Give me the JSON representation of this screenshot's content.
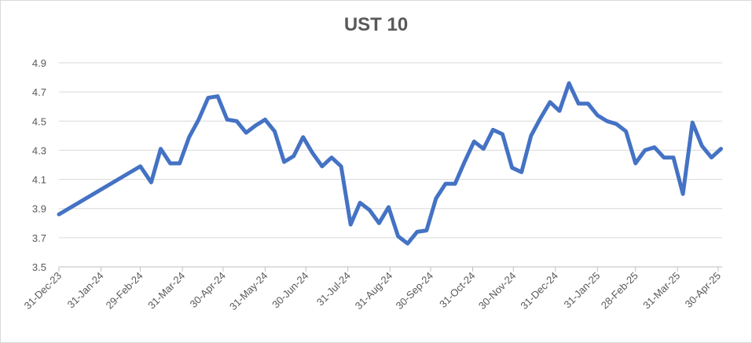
{
  "chart_data": {
    "type": "line",
    "title": "UST 10",
    "xlabel": "",
    "ylabel": "",
    "ylim": [
      3.5,
      4.9
    ],
    "grid": true,
    "legend": "none",
    "line_color": "#4472C4",
    "y_ticks": [
      "3.5",
      "3.7",
      "3.9",
      "4.1",
      "4.3",
      "4.5",
      "4.7",
      "4.9"
    ],
    "x_ticks": [
      "31-Dec-23",
      "31-Jan-24",
      "29-Feb-24",
      "31-Mar-24",
      "30-Apr-24",
      "31-May-24",
      "30-Jun-24",
      "31-Jul-24",
      "31-Aug-24",
      "30-Sep-24",
      "31-Oct-24",
      "30-Nov-24",
      "31-Dec-24",
      "31-Jan-25",
      "28-Feb-25",
      "31-Mar-25",
      "30-Apr-25"
    ],
    "series": [
      {
        "x": [
          "2023-12-31",
          "2024-02-29",
          "2024-03-08",
          "2024-03-15",
          "2024-03-22",
          "2024-03-29",
          "2024-04-05",
          "2024-04-12",
          "2024-04-19",
          "2024-04-26",
          "2024-05-03",
          "2024-05-10",
          "2024-05-17",
          "2024-05-24",
          "2024-05-31",
          "2024-06-07",
          "2024-06-14",
          "2024-06-21",
          "2024-06-28",
          "2024-07-05",
          "2024-07-12",
          "2024-07-19",
          "2024-07-26",
          "2024-08-02",
          "2024-08-09",
          "2024-08-16",
          "2024-08-23",
          "2024-08-30",
          "2024-09-06",
          "2024-09-13",
          "2024-09-20",
          "2024-09-27",
          "2024-10-04",
          "2024-10-11",
          "2024-10-18",
          "2024-10-25",
          "2024-11-01",
          "2024-11-08",
          "2024-11-15",
          "2024-11-22",
          "2024-11-29",
          "2024-12-06",
          "2024-12-13",
          "2024-12-20",
          "2024-12-27",
          "2025-01-03",
          "2025-01-10",
          "2025-01-17",
          "2025-01-24",
          "2025-01-31",
          "2025-02-07",
          "2025-02-14",
          "2025-02-21",
          "2025-02-28",
          "2025-03-07",
          "2025-03-14",
          "2025-03-21",
          "2025-03-28",
          "2025-04-04",
          "2025-04-11",
          "2025-04-18",
          "2025-04-25",
          "2025-05-02"
        ],
        "values": [
          3.86,
          4.19,
          4.08,
          4.31,
          4.21,
          4.21,
          4.39,
          4.51,
          4.66,
          4.67,
          4.51,
          4.5,
          4.42,
          4.47,
          4.51,
          4.43,
          4.22,
          4.26,
          4.39,
          4.28,
          4.19,
          4.25,
          4.19,
          3.79,
          3.94,
          3.89,
          3.8,
          3.91,
          3.71,
          3.66,
          3.74,
          3.75,
          3.97,
          4.07,
          4.07,
          4.22,
          4.36,
          4.31,
          4.44,
          4.41,
          4.18,
          4.15,
          4.4,
          4.52,
          4.63,
          4.57,
          4.76,
          4.62,
          4.62,
          4.54,
          4.5,
          4.48,
          4.43,
          4.21,
          4.3,
          4.32,
          4.25,
          4.25,
          4.0,
          4.49,
          4.33,
          4.25,
          4.31
        ]
      }
    ]
  }
}
